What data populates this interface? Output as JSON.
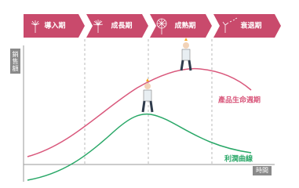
{
  "phases": [
    "導入期",
    "成長期",
    "成熟期",
    "衰退期"
  ],
  "y_axis_label": "銷售額",
  "x_axis_label": "時間",
  "curves": {
    "sales": "產品生命週期",
    "profit": "利潤曲線"
  }
}
